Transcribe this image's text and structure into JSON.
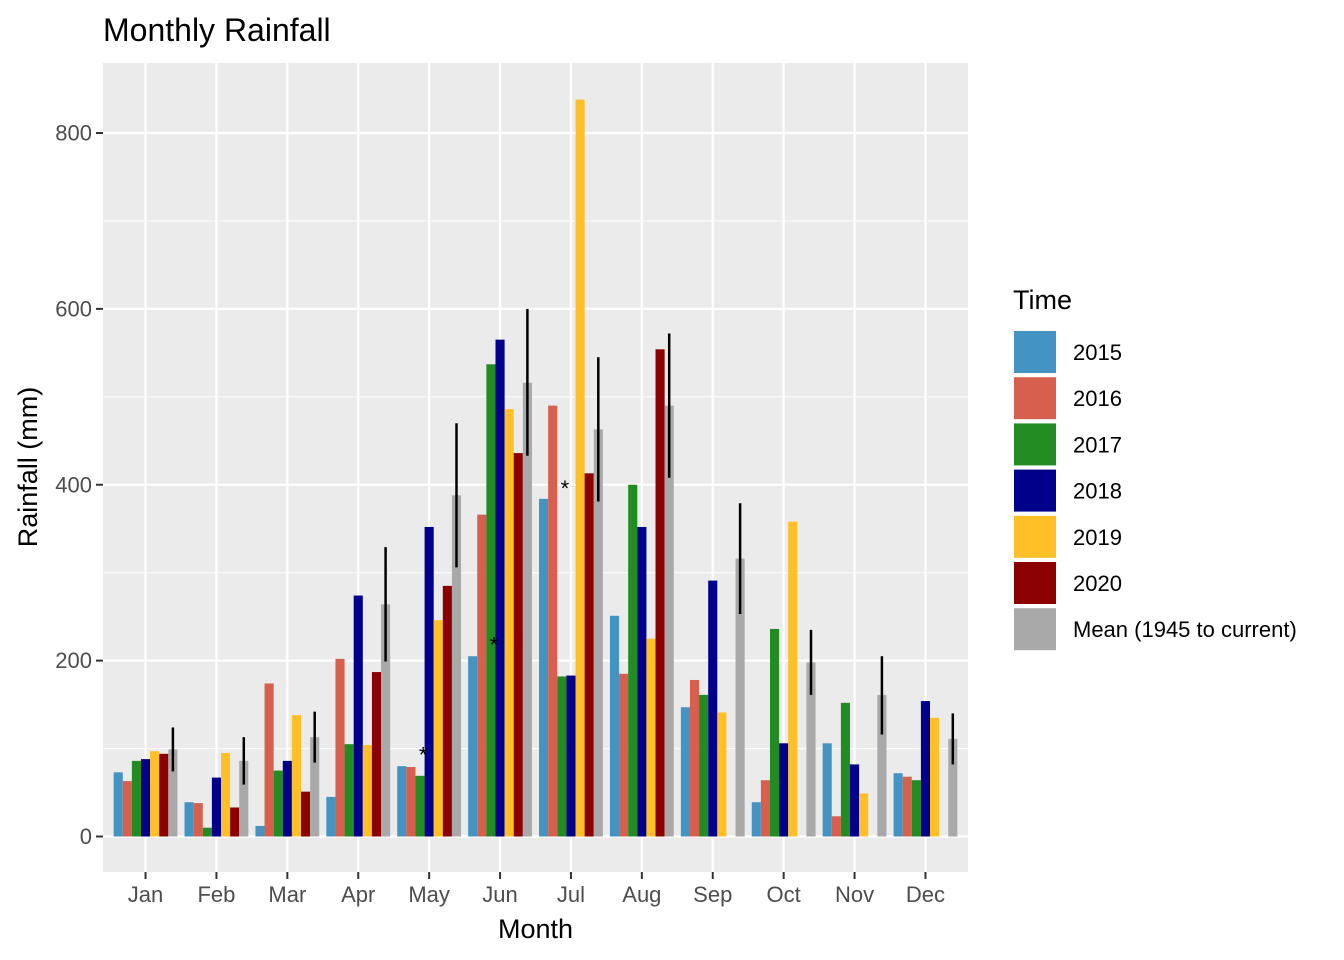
{
  "chart_data": {
    "type": "bar",
    "title": "Monthly Rainfall",
    "xlabel": "Month",
    "ylabel": "Rainfall (mm)",
    "ylim": [
      -40,
      880
    ],
    "yticks": [
      0,
      200,
      400,
      600,
      800
    ],
    "grid": true,
    "legend_position": "right",
    "legend_title": "Time",
    "categories": [
      "Jan",
      "Feb",
      "Mar",
      "Apr",
      "May",
      "Jun",
      "Jul",
      "Aug",
      "Sep",
      "Oct",
      "Nov",
      "Dec"
    ],
    "series": [
      {
        "name": "2015",
        "color": "#4393C3",
        "values": [
          73,
          39,
          12,
          45,
          80,
          205,
          384,
          251,
          147,
          39,
          106,
          72
        ]
      },
      {
        "name": "2016",
        "color": "#D6604D",
        "values": [
          63,
          38,
          174,
          202,
          79,
          366,
          490,
          185,
          178,
          64,
          23,
          68
        ]
      },
      {
        "name": "2017",
        "color": "#228B22",
        "values": [
          86,
          10,
          75,
          105,
          69,
          537,
          182,
          400,
          161,
          236,
          152,
          64
        ]
      },
      {
        "name": "2018",
        "color": "#00008B",
        "values": [
          88,
          67,
          86,
          274,
          352,
          565,
          183,
          352,
          291,
          106,
          82,
          154
        ]
      },
      {
        "name": "2019",
        "color": "#FFBF26",
        "values": [
          97,
          95,
          138,
          104,
          246,
          486,
          838,
          225,
          141,
          358,
          49,
          135
        ]
      },
      {
        "name": "2020",
        "color": "#8B0000",
        "values": [
          94,
          33,
          51,
          187,
          285,
          436,
          413,
          554,
          null,
          null,
          null,
          null
        ]
      },
      {
        "name": "Mean (1945 to current)",
        "color": "#A9A9A9",
        "values": [
          99,
          86,
          113,
          264,
          388,
          516,
          463,
          490,
          316,
          198,
          161,
          111
        ],
        "error_low": [
          74,
          59,
          84,
          199,
          306,
          433,
          381,
          408,
          253,
          161,
          116,
          82
        ],
        "error_high": [
          124,
          113,
          142,
          329,
          470,
          600,
          545,
          572,
          379,
          235,
          205,
          140
        ]
      }
    ],
    "annotations": [
      {
        "text": "*",
        "category": "May",
        "value": 100
      },
      {
        "text": "*",
        "category": "Jun",
        "value": 225
      },
      {
        "text": "*",
        "category": "Jul",
        "value": 403
      }
    ]
  }
}
